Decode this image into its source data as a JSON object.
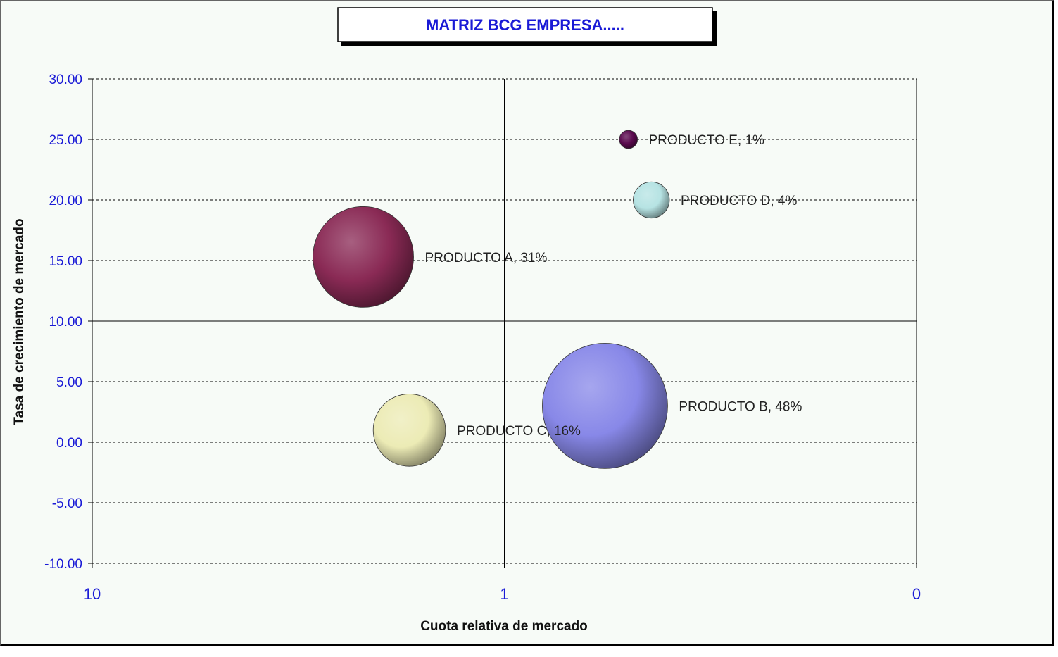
{
  "chart_data": {
    "type": "bubble",
    "title": "MATRIZ BCG  EMPRESA.....",
    "xlabel": "Cuota relativa de mercado",
    "ylabel": "Tasa de crecimiento de mercado",
    "x_scale": "log",
    "x_reversed": true,
    "xlim": [
      10,
      0.1
    ],
    "ylim": [
      -10,
      30
    ],
    "x_tick_labels": [
      "10",
      "1",
      "0"
    ],
    "y_tick_labels": [
      "30.00",
      "25.00",
      "20.00",
      "15.00",
      "10.00",
      "5.00",
      "0.00",
      "-5.00",
      "-10.00"
    ],
    "quadrant_dividers": {
      "x": 1,
      "y": 10
    },
    "grid": "horizontal dashed",
    "series": [
      {
        "label": "PRODUCTO A, 31%",
        "x": 2.2,
        "y": 15.3,
        "share_pct": 31,
        "color": "#8a2a55"
      },
      {
        "label": "PRODUCTO B, 48%",
        "x": 0.57,
        "y": 3.0,
        "share_pct": 48,
        "color": "#8888e8"
      },
      {
        "label": "PRODUCTO C, 16%",
        "x": 1.7,
        "y": 1.0,
        "share_pct": 16,
        "color": "#ecebb5"
      },
      {
        "label": "PRODUCTO D, 4%",
        "x": 0.44,
        "y": 20.0,
        "share_pct": 4,
        "color": "#b6e3e3"
      },
      {
        "label": "PRODUCTO E, 1%",
        "x": 0.5,
        "y": 25.0,
        "share_pct": 1,
        "color": "#5a0a4e"
      }
    ],
    "colors": {
      "title": "#1a1ad6",
      "ticks": "#1a1ad6",
      "grid": "#000000",
      "background": "#f7fbf7"
    }
  }
}
